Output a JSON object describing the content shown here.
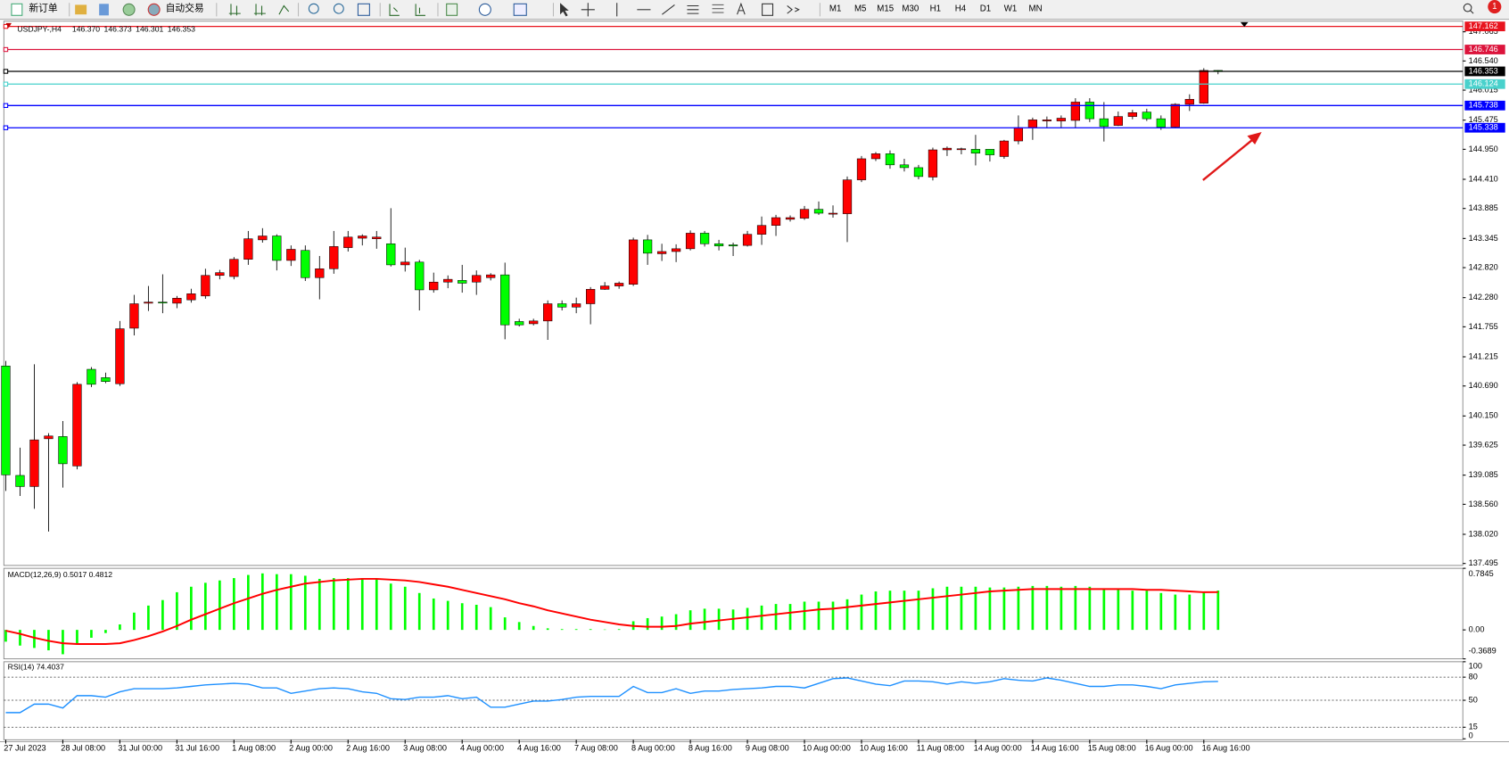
{
  "toolbar": {
    "new_order": "新订单",
    "auto_trading": "自动交易",
    "timeframes": [
      "M1",
      "M5",
      "M15",
      "M30",
      "H1",
      "H4",
      "D1",
      "W1",
      "MN"
    ],
    "badge": "1"
  },
  "chart_data": [
    {
      "type": "candlestick",
      "title": "USDJPY-,H4",
      "last_bar_labels": [
        "146.370",
        "146.373",
        "146.301",
        "146.353"
      ],
      "up_color": "#ff0000",
      "down_color": "#00ff00",
      "categories": [
        "27 Jul 2023",
        null,
        null,
        null,
        "28 Jul 08:00",
        null,
        null,
        null,
        "31 Jul 00:00",
        null,
        null,
        null,
        "31 Jul 16:00",
        null,
        null,
        null,
        "1 Aug 08:00",
        null,
        null,
        null,
        "2 Aug 00:00",
        null,
        null,
        null,
        "2 Aug 16:00",
        null,
        null,
        null,
        "3 Aug 08:00",
        null,
        null,
        null,
        "4 Aug 00:00",
        null,
        null,
        null,
        "4 Aug 16:00",
        null,
        null,
        null,
        "7 Aug 08:00",
        null,
        null,
        null,
        "8 Aug 00:00",
        null,
        null,
        null,
        "8 Aug 16:00",
        null,
        null,
        null,
        "9 Aug 08:00",
        null,
        null,
        null,
        "10 Aug 00:00",
        null,
        null,
        null,
        "10 Aug 16:00",
        null,
        null,
        null,
        "11 Aug 08:00",
        null,
        null,
        null,
        "14 Aug 00:00",
        null,
        null,
        null,
        "14 Aug 16:00",
        null,
        null,
        null,
        "15 Aug 08:00",
        null,
        null,
        null,
        "16 Aug 00:00",
        null,
        null,
        null,
        "16 Aug 16:00",
        null
      ],
      "open": [
        141.05,
        139.08,
        138.88,
        139.74,
        139.78,
        139.25,
        140.99,
        140.84,
        140.73,
        141.73,
        142.18,
        142.2,
        142.18,
        142.24,
        142.31,
        142.68,
        142.66,
        142.97,
        143.32,
        143.39,
        142.95,
        143.13,
        142.64,
        142.8,
        143.18,
        143.35,
        143.34,
        143.25,
        142.87,
        142.92,
        142.42,
        142.56,
        142.59,
        142.56,
        142.64,
        142.69,
        141.85,
        141.81,
        141.86,
        142.17,
        142.11,
        142.17,
        142.43,
        142.49,
        142.52,
        143.32,
        143.07,
        143.11,
        143.16,
        143.44,
        143.25,
        143.23,
        143.22,
        143.42,
        143.58,
        143.69,
        143.71,
        143.87,
        143.79,
        143.79,
        144.4,
        144.78,
        144.87,
        144.67,
        144.62,
        144.45,
        144.94,
        144.95,
        144.95,
        144.95,
        144.82,
        145.1,
        145.34,
        145.46,
        145.46,
        145.47,
        145.8,
        145.5,
        145.38,
        145.54,
        145.62,
        145.5,
        145.35,
        145.76,
        145.78,
        146.37
      ],
      "high": [
        141.14,
        139.58,
        141.08,
        139.84,
        140.06,
        140.76,
        141.03,
        140.93,
        141.86,
        142.33,
        142.49,
        142.7,
        142.31,
        142.44,
        142.8,
        142.78,
        143.01,
        143.48,
        143.53,
        143.42,
        143.22,
        143.22,
        143.03,
        143.48,
        143.48,
        143.42,
        143.48,
        143.89,
        143.18,
        142.96,
        142.73,
        142.68,
        142.87,
        142.77,
        142.72,
        142.91,
        141.9,
        141.9,
        142.23,
        142.23,
        142.28,
        142.47,
        142.56,
        142.57,
        143.36,
        143.41,
        143.25,
        143.24,
        143.49,
        143.48,
        143.32,
        143.27,
        143.48,
        143.74,
        143.77,
        143.76,
        143.93,
        144.01,
        143.94,
        144.46,
        144.83,
        144.9,
        144.93,
        144.78,
        144.67,
        144.98,
        145,
        144.98,
        145.21,
        144.95,
        145.12,
        145.56,
        145.52,
        145.54,
        145.56,
        145.87,
        145.87,
        145.8,
        145.63,
        145.66,
        145.68,
        145.56,
        145.78,
        145.94,
        146.41,
        146.373
      ],
      "low": [
        138.8,
        138.71,
        138.48,
        138.07,
        138.86,
        139.19,
        140.67,
        140.74,
        140.69,
        141.6,
        142.04,
        142,
        142.09,
        142.19,
        142.26,
        142.61,
        142.61,
        142.87,
        143.27,
        142.77,
        142.85,
        142.58,
        142.25,
        142.71,
        143.11,
        143.22,
        143.16,
        142.84,
        142.75,
        142.05,
        142.37,
        142.45,
        142.37,
        142.33,
        142.59,
        141.53,
        141.76,
        141.78,
        141.52,
        142.05,
        142,
        141.8,
        142.42,
        142.44,
        142.49,
        142.87,
        142.94,
        142.92,
        143.13,
        143.2,
        143.13,
        143.03,
        143.2,
        143.23,
        143.39,
        143.65,
        143.68,
        143.77,
        143.72,
        143.28,
        144.36,
        144.74,
        144.6,
        144.55,
        144.41,
        144.39,
        144.83,
        144.86,
        144.66,
        144.73,
        144.78,
        145.04,
        145.12,
        145.33,
        145.33,
        145.33,
        145.44,
        145.09,
        145.37,
        145.49,
        145.46,
        145.3,
        145.33,
        145.64,
        145.77,
        146.301
      ],
      "close": [
        139.09,
        138.88,
        139.72,
        139.79,
        139.29,
        140.72,
        140.72,
        140.77,
        141.72,
        142.17,
        142.2,
        142.19,
        142.27,
        142.35,
        142.68,
        142.73,
        142.97,
        143.34,
        143.39,
        142.95,
        143.15,
        142.64,
        142.8,
        143.2,
        143.37,
        143.39,
        143.37,
        142.87,
        142.92,
        142.42,
        142.56,
        142.61,
        142.54,
        142.68,
        142.69,
        141.79,
        141.79,
        141.86,
        142.17,
        142.11,
        142.17,
        142.43,
        142.49,
        142.54,
        143.32,
        143.08,
        143.11,
        143.16,
        143.44,
        143.25,
        143.21,
        143.21,
        143.42,
        143.58,
        143.72,
        143.72,
        143.87,
        143.8,
        143.8,
        144.4,
        144.78,
        144.87,
        144.67,
        144.62,
        144.46,
        144.94,
        144.97,
        144.96,
        144.88,
        144.85,
        145.1,
        145.34,
        145.48,
        145.48,
        145.51,
        145.8,
        145.5,
        145.36,
        145.54,
        145.61,
        145.5,
        145.35,
        145.76,
        145.85,
        146.37,
        146.353
      ],
      "ylim": [
        137.46,
        147.256
      ],
      "yticks": [
        {
          "value": 147.065,
          "label": "147.065"
        },
        {
          "value": 146.54,
          "label": "146.540"
        },
        {
          "value": 146.015,
          "label": "146.015"
        },
        {
          "value": 145.475,
          "label": "145.475"
        },
        {
          "value": 144.95,
          "label": "144.950"
        },
        {
          "value": 144.41,
          "label": "144.410"
        },
        {
          "value": 143.885,
          "label": "143.885"
        },
        {
          "value": 143.345,
          "label": "143.345"
        },
        {
          "value": 142.82,
          "label": "142.820"
        },
        {
          "value": 142.28,
          "label": "142.280"
        },
        {
          "value": 141.755,
          "label": "141.755"
        },
        {
          "value": 141.215,
          "label": "141.215"
        },
        {
          "value": 140.69,
          "label": "140.690"
        },
        {
          "value": 140.15,
          "label": "140.150"
        },
        {
          "value": 139.625,
          "label": "139.625"
        },
        {
          "value": 139.085,
          "label": "139.085"
        },
        {
          "value": 138.56,
          "label": "138.560"
        },
        {
          "value": 138.02,
          "label": "138.020"
        },
        {
          "value": 137.495,
          "label": "137.495"
        }
      ],
      "levels": [
        {
          "value": 147.162,
          "label": "147.162",
          "color": "#e8141e"
        },
        {
          "value": 146.746,
          "label": "146.746",
          "color": "#dc143c"
        },
        {
          "value": 146.353,
          "label": "146.353",
          "color": "#000000"
        },
        {
          "value": 146.124,
          "label": "146.124",
          "color": "#48d1cc"
        },
        {
          "value": 145.738,
          "label": "145.738",
          "color": "#0000ff"
        },
        {
          "value": 145.338,
          "label": "145.338",
          "color": "#0000ff"
        }
      ]
    },
    {
      "type": "macd",
      "title": "MACD(12,26,9) 0.5017 0.4812",
      "histogram": {
        "color": "#00ff00",
        "values": [
          -0.15,
          -0.2,
          -0.23,
          -0.26,
          -0.31,
          -0.17,
          -0.1,
          -0.04,
          0.07,
          0.22,
          0.31,
          0.38,
          0.48,
          0.55,
          0.6,
          0.63,
          0.66,
          0.7,
          0.72,
          0.71,
          0.71,
          0.69,
          0.65,
          0.66,
          0.66,
          0.66,
          0.65,
          0.59,
          0.55,
          0.47,
          0.4,
          0.37,
          0.34,
          0.32,
          0.29,
          0.16,
          0.1,
          0.05,
          0.02,
          0.01,
          0.01,
          0.01,
          0.005,
          0.01,
          0.11,
          0.15,
          0.17,
          0.2,
          0.25,
          0.27,
          0.27,
          0.26,
          0.28,
          0.31,
          0.33,
          0.33,
          0.36,
          0.36,
          0.36,
          0.39,
          0.45,
          0.49,
          0.5,
          0.5,
          0.5,
          0.53,
          0.55,
          0.55,
          0.55,
          0.54,
          0.54,
          0.55,
          0.56,
          0.56,
          0.55,
          0.56,
          0.55,
          0.53,
          0.52,
          0.5,
          0.5,
          0.47,
          0.45,
          0.45,
          0.49,
          0.5017
        ]
      },
      "signal": {
        "color": "#ff0000",
        "values": [
          -0.01,
          -0.05,
          -0.1,
          -0.14,
          -0.17,
          -0.18,
          -0.18,
          -0.18,
          -0.17,
          -0.13,
          -0.08,
          -0.02,
          0.05,
          0.13,
          0.2,
          0.27,
          0.34,
          0.4,
          0.46,
          0.51,
          0.55,
          0.59,
          0.61,
          0.63,
          0.64,
          0.65,
          0.65,
          0.64,
          0.63,
          0.61,
          0.58,
          0.55,
          0.51,
          0.47,
          0.43,
          0.39,
          0.34,
          0.3,
          0.25,
          0.21,
          0.17,
          0.13,
          0.1,
          0.07,
          0.05,
          0.04,
          0.04,
          0.05,
          0.08,
          0.1,
          0.12,
          0.14,
          0.16,
          0.18,
          0.2,
          0.22,
          0.24,
          0.26,
          0.27,
          0.29,
          0.31,
          0.33,
          0.35,
          0.37,
          0.39,
          0.41,
          0.43,
          0.45,
          0.47,
          0.49,
          0.5,
          0.51,
          0.52,
          0.52,
          0.52,
          0.52,
          0.52,
          0.52,
          0.52,
          0.52,
          0.51,
          0.51,
          0.5,
          0.49,
          0.48,
          0.4812
        ]
      },
      "ylim": [
        -0.3689,
        0.7845
      ],
      "yticks": [
        0.7845,
        {
          "value": 0,
          "label": "0.00"
        },
        -0.3689
      ]
    },
    {
      "type": "rsi",
      "title": "RSI(14) 74.4037",
      "color": "#1e90ff",
      "values": [
        34,
        34,
        45,
        45,
        40,
        56,
        56,
        54,
        61,
        65,
        65,
        65,
        66,
        68,
        70,
        71,
        72,
        71,
        66,
        66,
        59,
        62,
        65,
        66,
        65,
        61,
        59,
        52,
        51,
        54,
        54,
        56,
        52,
        54,
        41,
        41,
        45,
        49,
        49,
        51,
        54,
        55,
        55,
        55,
        68,
        60,
        60,
        65,
        59,
        62,
        62,
        64,
        65,
        66,
        68,
        68,
        66,
        72,
        78,
        79,
        75,
        71,
        69,
        75,
        75,
        74,
        71,
        74,
        72,
        74,
        78,
        76,
        75,
        79,
        76,
        72,
        68,
        68,
        70,
        70,
        68,
        65,
        70,
        72,
        74,
        74.4037
      ],
      "ylim": [
        0,
        100
      ],
      "yticks": [
        100,
        80,
        50,
        15,
        0
      ],
      "levels": [
        80,
        50,
        15
      ]
    }
  ]
}
